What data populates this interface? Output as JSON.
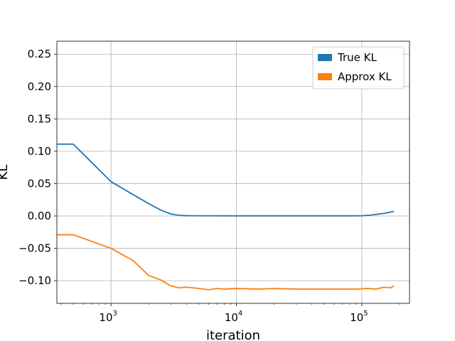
{
  "chart_data": {
    "type": "line",
    "xlabel": "iteration",
    "ylabel": "KL",
    "xscale": "log",
    "xlim": [
      370,
      240000
    ],
    "ylim": [
      -0.135,
      0.27
    ],
    "grid": true,
    "legend_position": "top-right",
    "x_ticks": [
      {
        "value": 1000,
        "base": "10",
        "exp": "3"
      },
      {
        "value": 10000,
        "base": "10",
        "exp": "4"
      },
      {
        "value": 100000,
        "base": "10",
        "exp": "5"
      }
    ],
    "y_ticks": [
      0.25,
      0.2,
      0.15,
      0.1,
      0.05,
      0.0,
      -0.05,
      -0.1
    ],
    "y_tick_labels": [
      "0.25",
      "0.20",
      "0.15",
      "0.10",
      "0.05",
      "0.00",
      "−0.05",
      "−0.10"
    ],
    "series": [
      {
        "name": "True KL",
        "color": "#1f77b4",
        "x": [
          370,
          500,
          1000,
          1500,
          2000,
          2500,
          3000,
          3500,
          4000,
          5000,
          10000,
          20000,
          50000,
          80000,
          100000,
          120000,
          150000,
          180000
        ],
        "y": [
          0.111,
          0.111,
          0.053,
          0.033,
          0.019,
          0.009,
          0.003,
          0.001,
          0.0005,
          0.0003,
          0.0002,
          0.0002,
          0.0002,
          0.0002,
          0.0003,
          0.0015,
          0.004,
          0.007
        ]
      },
      {
        "name": "Approx KL",
        "color": "#ff7f0e",
        "x": [
          370,
          500,
          1000,
          1500,
          2000,
          2500,
          3000,
          3500,
          4000,
          5000,
          6000,
          7000,
          8000,
          10000,
          15000,
          20000,
          30000,
          50000,
          70000,
          90000,
          110000,
          130000,
          150000,
          170000,
          180000
        ],
        "y": [
          -0.029,
          -0.029,
          -0.05,
          -0.069,
          -0.092,
          -0.099,
          -0.108,
          -0.111,
          -0.11,
          -0.112,
          -0.114,
          -0.112,
          -0.113,
          -0.112,
          -0.113,
          -0.112,
          -0.113,
          -0.113,
          -0.113,
          -0.113,
          -0.112,
          -0.113,
          -0.11,
          -0.111,
          -0.108
        ]
      }
    ]
  }
}
